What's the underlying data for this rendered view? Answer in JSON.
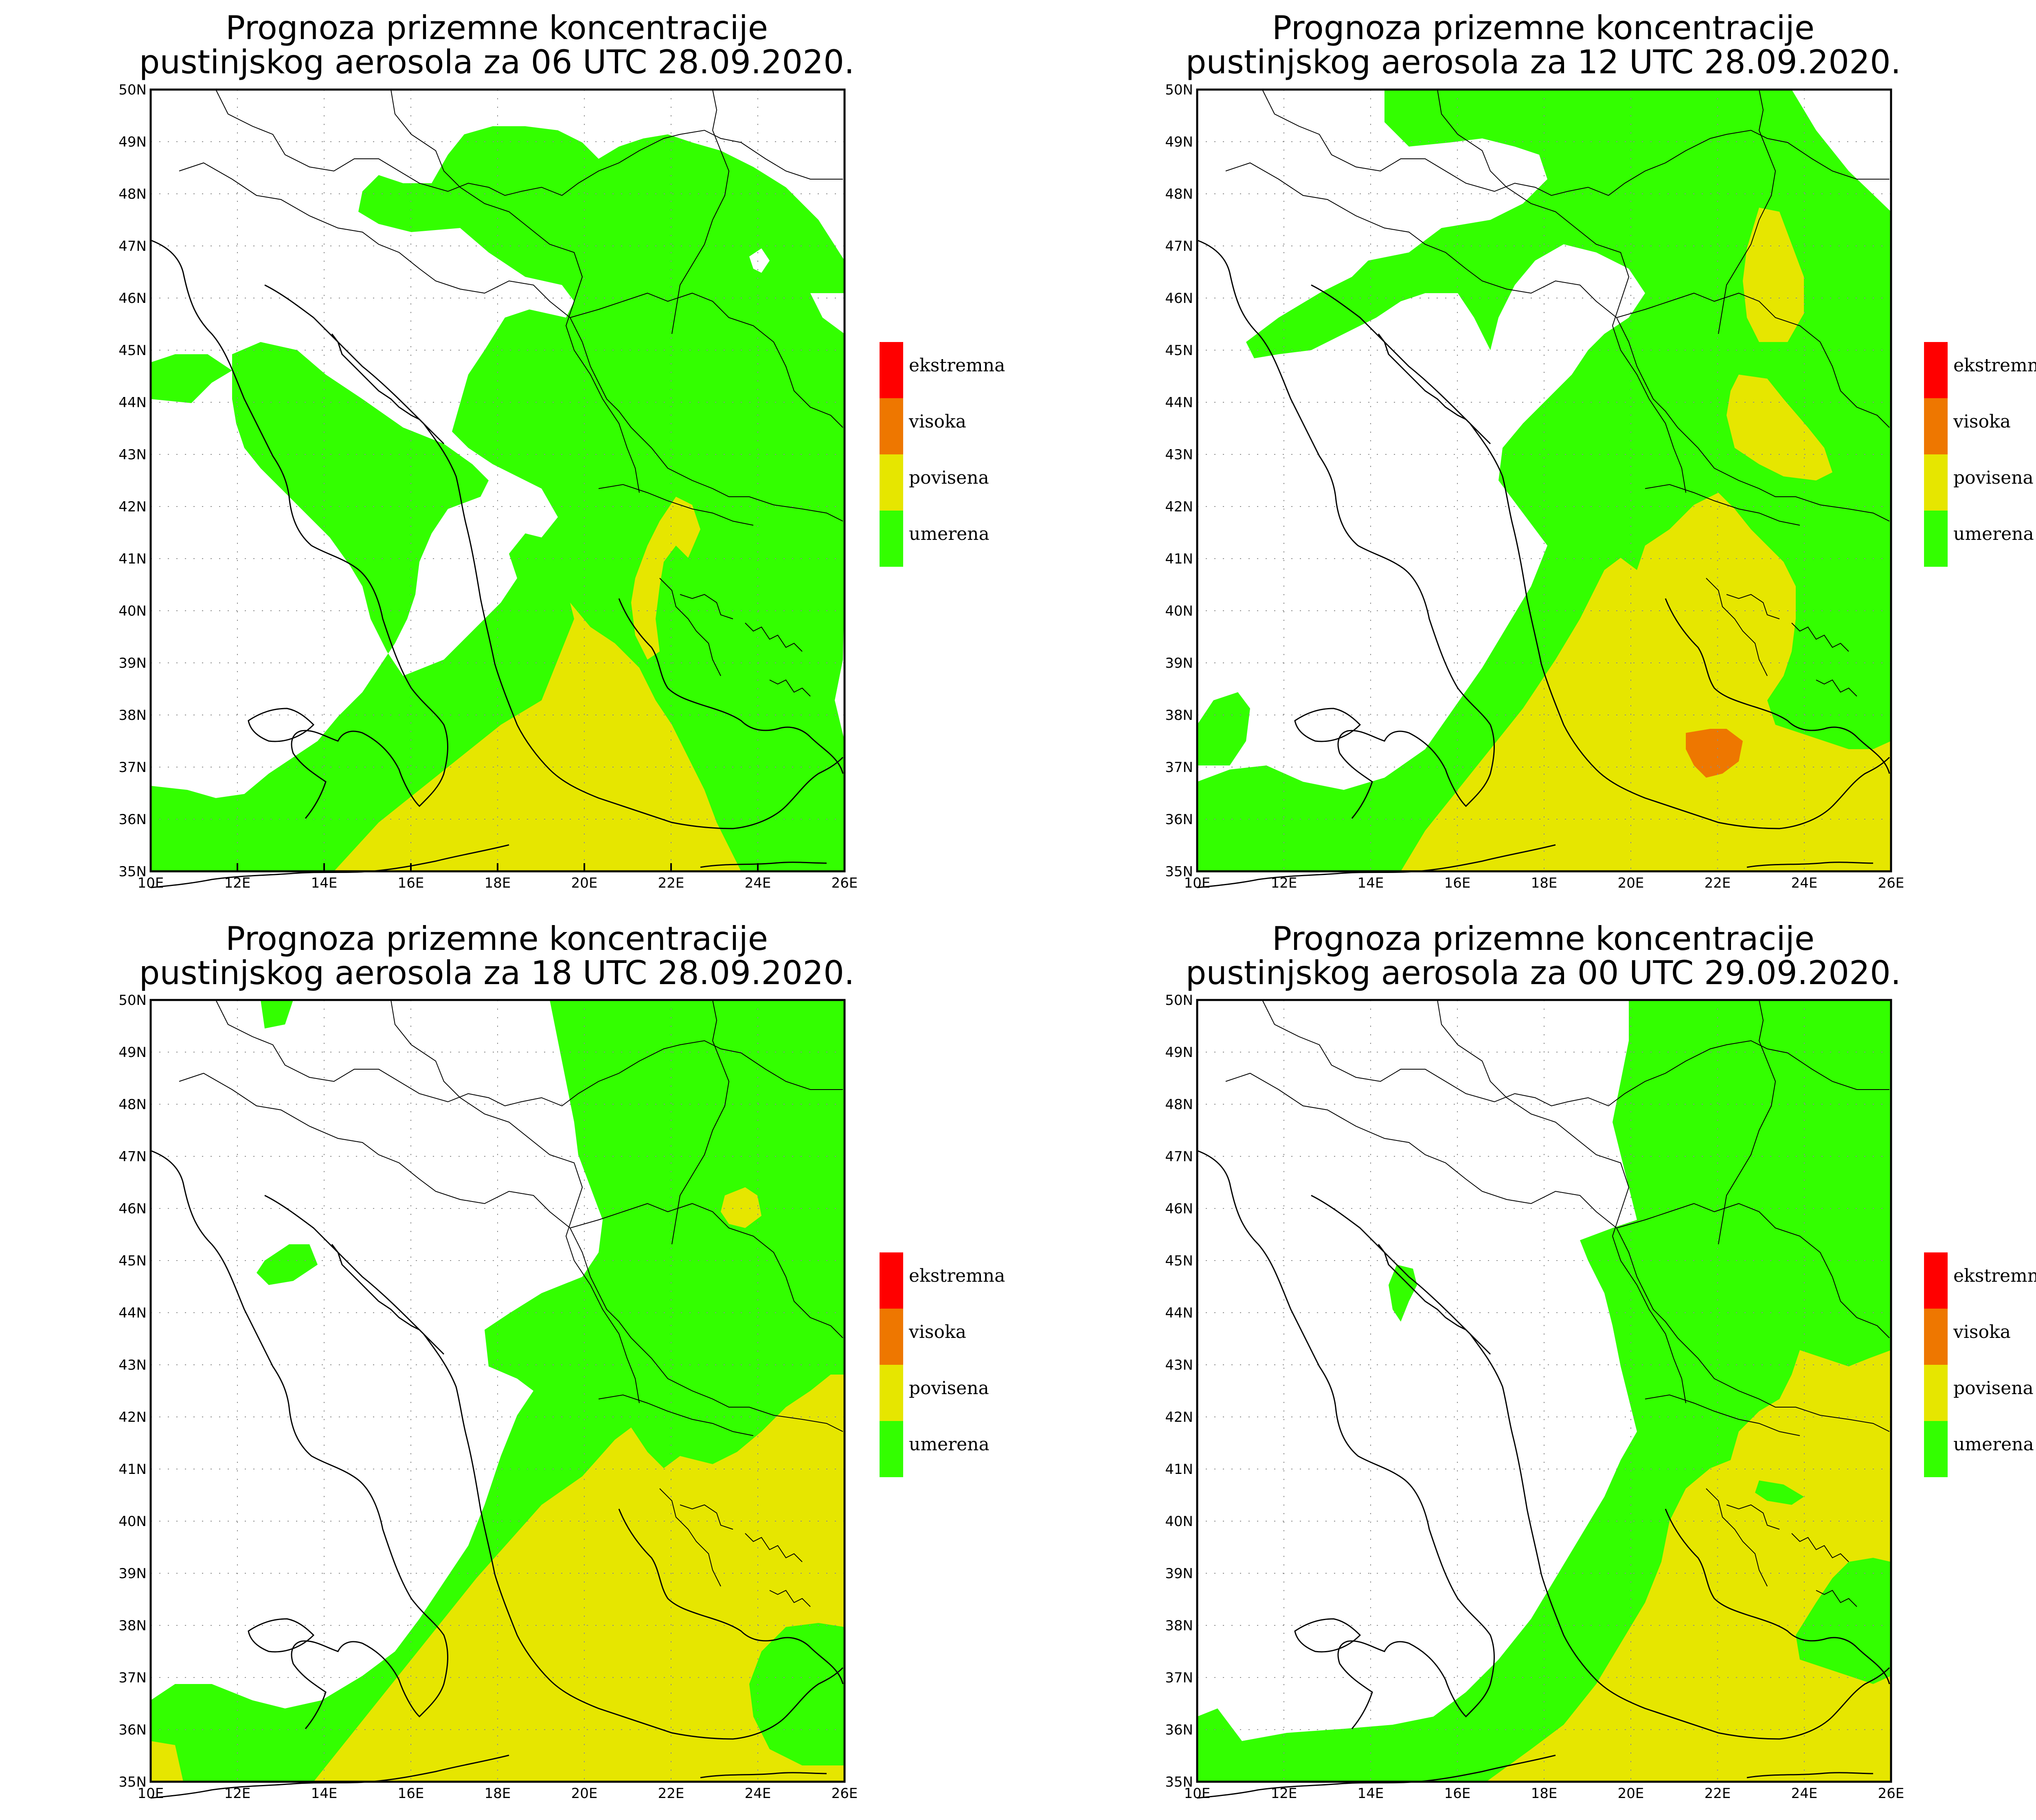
{
  "legend": {
    "items": [
      {
        "label": "ekstremna",
        "color": "#ff0000"
      },
      {
        "label": "visoka",
        "color": "#ee7700"
      },
      {
        "label": "povisena",
        "color": "#e6e600"
      },
      {
        "label": "umerena",
        "color": "#33ff00"
      }
    ]
  },
  "axes": {
    "lon_ticks": [
      "10E",
      "12E",
      "14E",
      "16E",
      "18E",
      "20E",
      "22E",
      "24E",
      "26E"
    ],
    "lat_ticks": [
      "35N",
      "36N",
      "37N",
      "38N",
      "39N",
      "40N",
      "41N",
      "42N",
      "43N",
      "44N",
      "45N",
      "46N",
      "47N",
      "48N",
      "49N",
      "50N"
    ],
    "lon_range": [
      10,
      26
    ],
    "lat_range": [
      35,
      50
    ]
  },
  "panels": [
    {
      "title_line1": "Prognoza prizemne koncentracije",
      "title_line2": "pustinjskog aerosola za 06 UTC 28.09.2020."
    },
    {
      "title_line1": "Prognoza prizemne koncentracije",
      "title_line2": "pustinjskog aerosola za 12 UTC 28.09.2020."
    },
    {
      "title_line1": "Prognoza prizemne koncentracije",
      "title_line2": "pustinjskog aerosola za 18 UTC 28.09.2020."
    },
    {
      "title_line1": "Prognoza prizemne koncentracije",
      "title_line2": "pustinjskog aerosola za 00 UTC 29.09.2020."
    }
  ]
}
